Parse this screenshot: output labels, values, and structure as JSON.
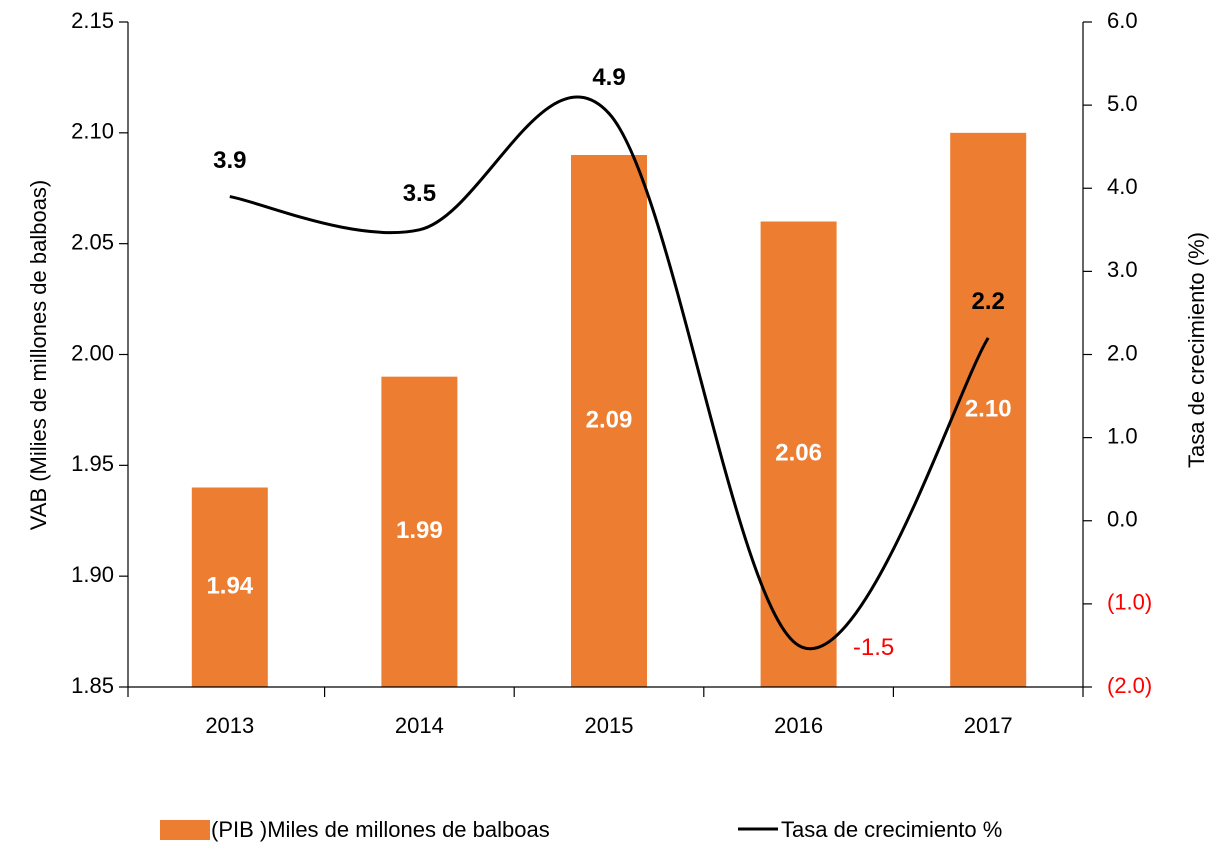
{
  "chart_data": {
    "type": "bar_line",
    "categories": [
      "2013",
      "2014",
      "2015",
      "2016",
      "2017"
    ],
    "series": [
      {
        "name": "(PIB )Miles de millones de balboas",
        "type": "bar",
        "color": "#ed7d31",
        "values": [
          1.94,
          1.99,
          2.09,
          2.06,
          2.1
        ],
        "value_labels": [
          "1.94",
          "1.99",
          "2.09",
          "2.06",
          "2.10"
        ]
      },
      {
        "name": "Tasa de crecimiento %",
        "type": "line",
        "axis": "y2",
        "color": "#000000",
        "values": [
          3.9,
          3.5,
          4.9,
          -1.5,
          2.2
        ]
      }
    ],
    "ylabel": "VAB (Milies de millones de balboas)",
    "y2label": "Tasa de crecimiento (%)",
    "ylim": [
      1.85,
      2.15
    ],
    "yticks": [
      1.85,
      {
        "value": 1.9,
        "label": "1.90"
      },
      1.95,
      {
        "value": 2.0,
        "label": "2.00"
      },
      2.05,
      {
        "value": 2.1,
        "label": "2.10"
      },
      2.15
    ],
    "y2lim": [
      -2,
      6
    ],
    "y2ticks": [
      {
        "value": -2,
        "label": "(2.0)"
      },
      {
        "value": -1,
        "label": "(1.0)"
      },
      {
        "value": 0,
        "label": "0.0"
      },
      {
        "value": 1,
        "label": "1.0"
      },
      {
        "value": 2,
        "label": "2.0"
      },
      {
        "value": 3,
        "label": "3.0"
      },
      {
        "value": 4,
        "label": "4.0"
      },
      {
        "value": 5,
        "label": "5.0"
      },
      {
        "value": 6,
        "label": "6.0"
      }
    ],
    "negative_color": "#ff0000",
    "legend": "bottom"
  }
}
